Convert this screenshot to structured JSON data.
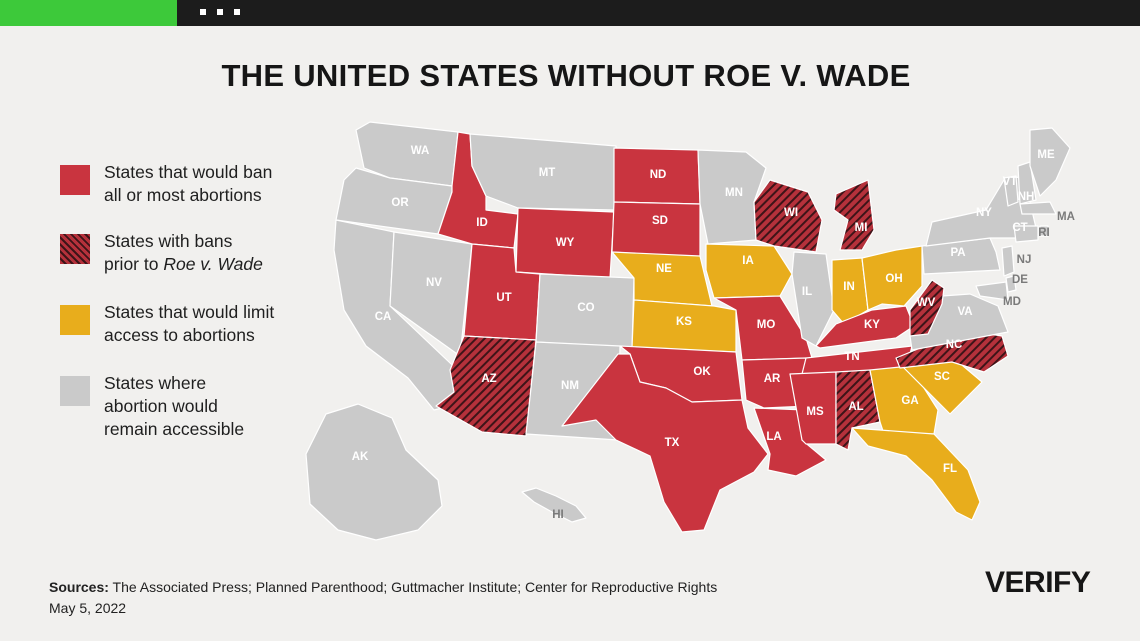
{
  "header": {
    "accent_color": "#3dc93a",
    "bar_color": "#1c1c1c",
    "menu_icon": "dots-icon"
  },
  "title": "THE UNITED STATES WITHOUT ROE V. WADE",
  "legend": [
    {
      "kind": "ban",
      "color": "#c9343f",
      "line1": "States that would ban",
      "line2": "all or most abortions"
    },
    {
      "kind": "pre_roe",
      "color": "#b5313b",
      "line1": "States with bans",
      "line2_prefix": "prior to ",
      "line2_italic": "Roe v. Wade"
    },
    {
      "kind": "limit",
      "color": "#e8ad1c",
      "line1": "States that would limit",
      "line2": "access to abortions"
    },
    {
      "kind": "accessible",
      "color": "#cacaca",
      "line1": "States where",
      "line2": "abortion would",
      "line3": "remain accessible"
    }
  ],
  "status_colors": {
    "ban": "#c9343f",
    "pre_roe": "#b5313b",
    "limit": "#e8ad1c",
    "accessible": "#cacaca"
  },
  "states": [
    {
      "abbr": "WA",
      "status": "accessible"
    },
    {
      "abbr": "OR",
      "status": "accessible"
    },
    {
      "abbr": "CA",
      "status": "accessible"
    },
    {
      "abbr": "NV",
      "status": "accessible"
    },
    {
      "abbr": "ID",
      "status": "ban"
    },
    {
      "abbr": "MT",
      "status": "accessible"
    },
    {
      "abbr": "WY",
      "status": "ban"
    },
    {
      "abbr": "UT",
      "status": "ban"
    },
    {
      "abbr": "AZ",
      "status": "pre_roe"
    },
    {
      "abbr": "CO",
      "status": "accessible"
    },
    {
      "abbr": "NM",
      "status": "accessible"
    },
    {
      "abbr": "ND",
      "status": "ban"
    },
    {
      "abbr": "SD",
      "status": "ban"
    },
    {
      "abbr": "NE",
      "status": "limit"
    },
    {
      "abbr": "KS",
      "status": "limit"
    },
    {
      "abbr": "OK",
      "status": "ban"
    },
    {
      "abbr": "TX",
      "status": "ban"
    },
    {
      "abbr": "MN",
      "status": "accessible"
    },
    {
      "abbr": "IA",
      "status": "limit"
    },
    {
      "abbr": "MO",
      "status": "ban"
    },
    {
      "abbr": "AR",
      "status": "ban"
    },
    {
      "abbr": "LA",
      "status": "ban"
    },
    {
      "abbr": "WI",
      "status": "pre_roe"
    },
    {
      "abbr": "IL",
      "status": "accessible"
    },
    {
      "abbr": "MI",
      "status": "pre_roe"
    },
    {
      "abbr": "IN",
      "status": "limit"
    },
    {
      "abbr": "OH",
      "status": "limit"
    },
    {
      "abbr": "KY",
      "status": "ban"
    },
    {
      "abbr": "TN",
      "status": "ban"
    },
    {
      "abbr": "MS",
      "status": "ban"
    },
    {
      "abbr": "AL",
      "status": "pre_roe"
    },
    {
      "abbr": "GA",
      "status": "limit"
    },
    {
      "abbr": "FL",
      "status": "limit"
    },
    {
      "abbr": "SC",
      "status": "limit"
    },
    {
      "abbr": "NC",
      "status": "pre_roe"
    },
    {
      "abbr": "VA",
      "status": "accessible"
    },
    {
      "abbr": "WV",
      "status": "pre_roe"
    },
    {
      "abbr": "PA",
      "status": "accessible"
    },
    {
      "abbr": "NY",
      "status": "accessible"
    },
    {
      "abbr": "VT",
      "status": "accessible"
    },
    {
      "abbr": "NH",
      "status": "accessible"
    },
    {
      "abbr": "ME",
      "status": "accessible"
    },
    {
      "abbr": "MA",
      "status": "accessible"
    },
    {
      "abbr": "RI",
      "status": "accessible"
    },
    {
      "abbr": "CT",
      "status": "accessible"
    },
    {
      "abbr": "NJ",
      "status": "accessible"
    },
    {
      "abbr": "DE",
      "status": "accessible"
    },
    {
      "abbr": "MD",
      "status": "accessible"
    },
    {
      "abbr": "AK",
      "status": "accessible"
    },
    {
      "abbr": "HI",
      "status": "accessible"
    }
  ],
  "sources": {
    "label": "Sources:",
    "text": " The Associated Press; Planned Parenthood; Guttmacher Institute; Center for Reproductive Rights",
    "date": "May 5, 2022"
  },
  "logo": {
    "text": "ERIFY",
    "mark": "V",
    "icon": "verify-check-icon"
  }
}
